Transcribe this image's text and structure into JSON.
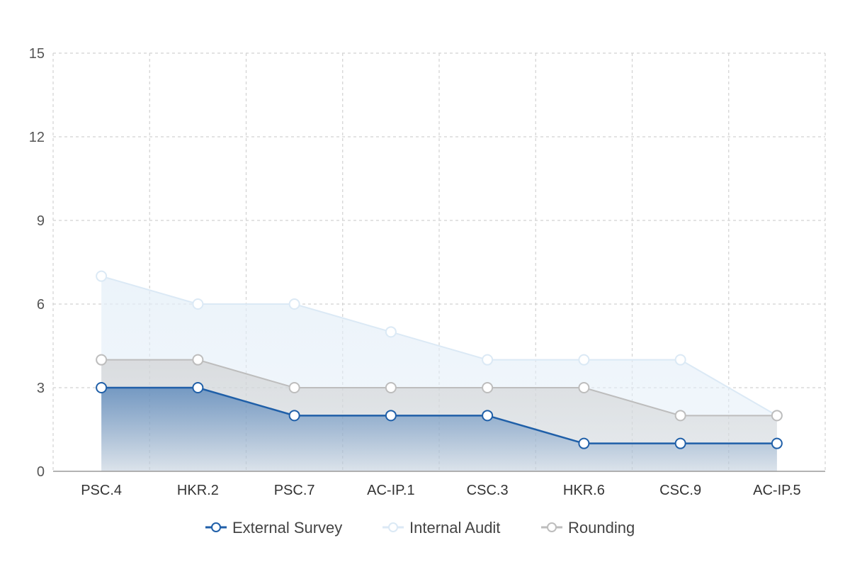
{
  "chart_data": {
    "type": "area",
    "categories": [
      "PSC.4",
      "HKR.2",
      "PSC.7",
      "AC-IP.1",
      "CSC.3",
      "HKR.6",
      "CSC.9",
      "AC-IP.5"
    ],
    "series": [
      {
        "name": "External Survey",
        "values": [
          3,
          3,
          2,
          2,
          2,
          1,
          1,
          1
        ],
        "color": "#1f5fa8"
      },
      {
        "name": "Internal Audit",
        "values": [
          7,
          6,
          6,
          5,
          4,
          4,
          4,
          2
        ],
        "color": "#dbe9f5"
      },
      {
        "name": "Rounding",
        "values": [
          4,
          4,
          3,
          3,
          3,
          3,
          2,
          2
        ],
        "color": "#bdbdbd"
      }
    ],
    "yticks": [
      "0",
      "3",
      "6",
      "9",
      "12",
      "15"
    ],
    "ylim": [
      0,
      15
    ],
    "grid": true,
    "legend": "bottom"
  }
}
